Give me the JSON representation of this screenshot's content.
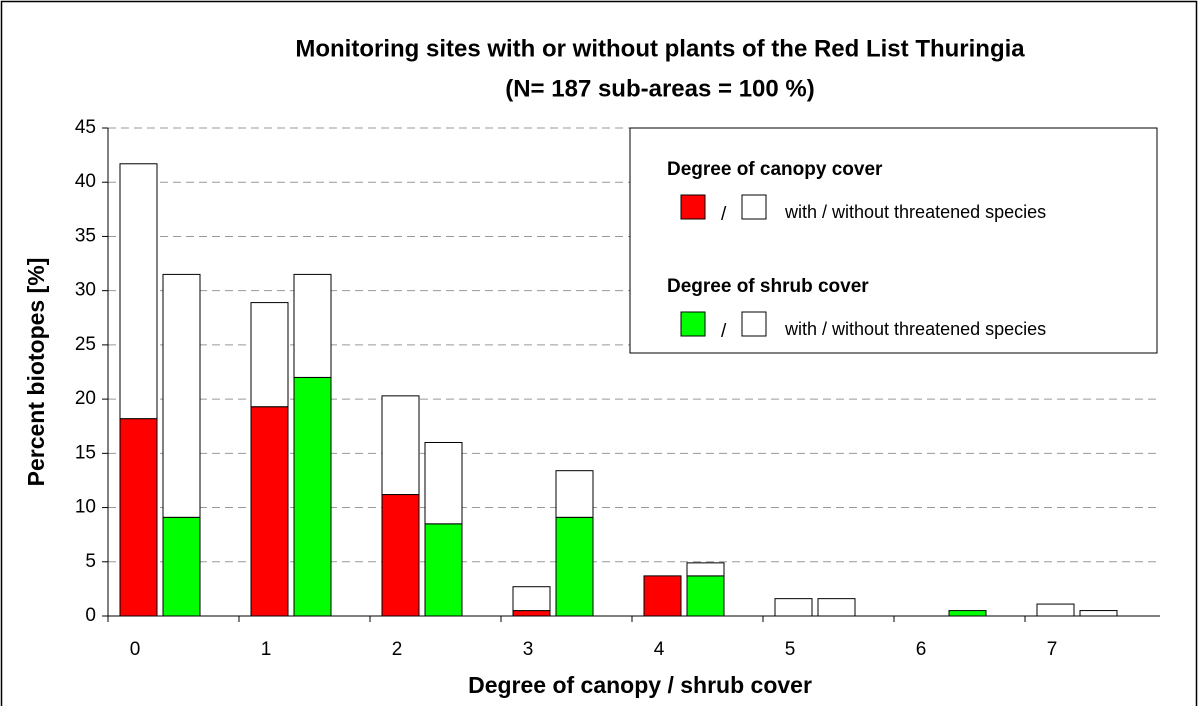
{
  "chart_data": {
    "type": "grouped-stacked-bar",
    "title": "Monitoring sites with or without plants of the Red List Thuringia",
    "subtitle": "(N= 187 sub-areas = 100 %)",
    "x_label": "Degree of canopy / shrub cover",
    "y_label": "Percent biotopes [%]",
    "categories": [
      "0",
      "1",
      "2",
      "3",
      "4",
      "5",
      "6",
      "7"
    ],
    "ylim": [
      0,
      45
    ],
    "yticks": [
      0,
      5,
      10,
      15,
      20,
      25,
      30,
      35,
      40,
      45
    ],
    "grid": true,
    "legend_position": "upper right",
    "groups": [
      {
        "title": "Degree of canopy cover",
        "separator": "/",
        "label": "with / without threatened species",
        "with_color": "#ff0000",
        "without_color": "#ffffff",
        "with": [
          18.2,
          19.3,
          11.2,
          0.5,
          3.7,
          0,
          0,
          0
        ],
        "without": [
          23.5,
          9.6,
          9.1,
          2.2,
          0,
          1.6,
          0,
          1.1
        ]
      },
      {
        "title": "Degree of shrub cover",
        "separator": "/",
        "label": "with / without threatened species",
        "with_color": "#00ff00",
        "without_color": "#ffffff",
        "with": [
          9.1,
          22.0,
          8.5,
          9.1,
          3.7,
          0,
          0.5,
          0
        ],
        "without": [
          22.4,
          9.5,
          7.5,
          4.3,
          1.2,
          1.6,
          0,
          0.5
        ]
      }
    ]
  }
}
